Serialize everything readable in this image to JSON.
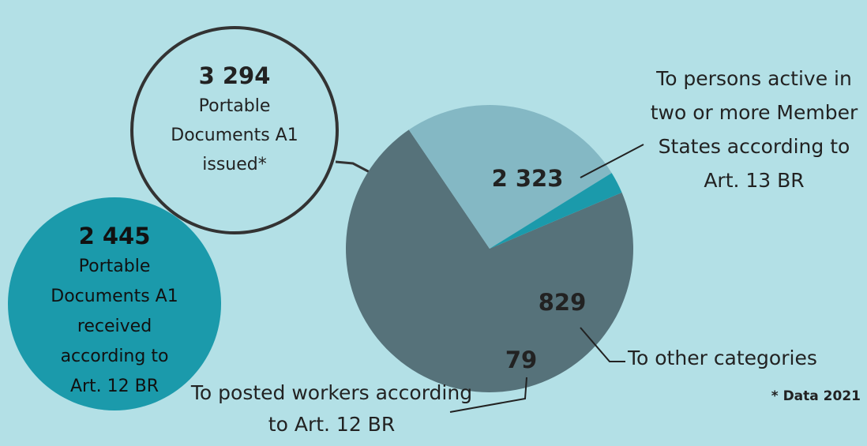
{
  "chart_data": {
    "type": "pie",
    "categories": [
      "To persons active in two or more Member States according to Art. 13 BR",
      "To other categories",
      "To posted workers according to Art. 12 BR"
    ],
    "values": [
      2323,
      829,
      79
    ],
    "value_labels": [
      "2 323",
      "829",
      "79"
    ],
    "colors": [
      "#56727a",
      "#84b8c4",
      "#1b9aab"
    ],
    "issued": {
      "value": 3294,
      "label": "3 294",
      "text": "Portable Documents A1 issued*"
    },
    "received": {
      "value": 2445,
      "label": "2 445",
      "text": "Portable Documents A1 received according to Art. 12 BR"
    },
    "footnote": "* Data 2021"
  }
}
